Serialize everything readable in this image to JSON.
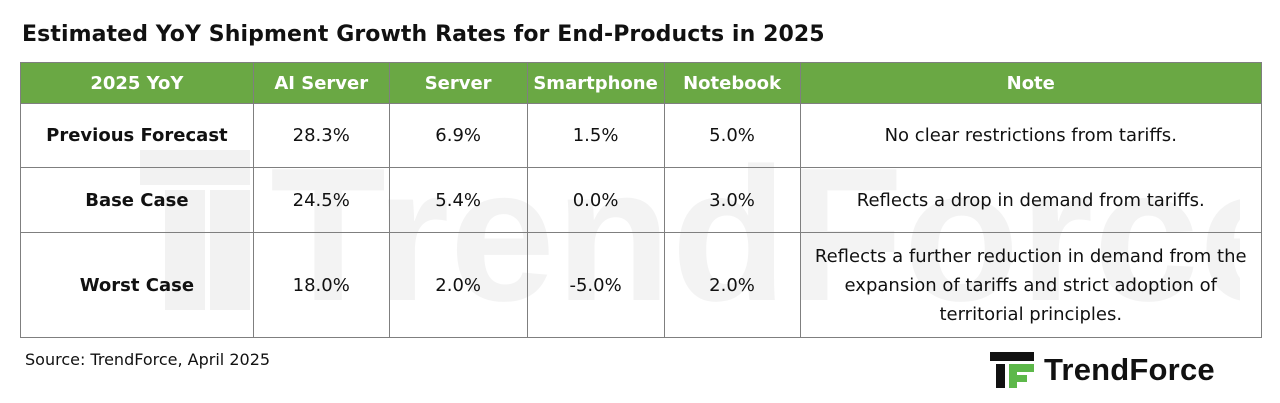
{
  "title": "Estimated YoY Shipment Growth Rates for End-Products  in 2025",
  "colors": {
    "header_bg": "#6aa844",
    "header_text": "#ffffff",
    "border": "#7f7f7f",
    "brand_green": "#5db84a"
  },
  "table": {
    "headers": [
      "2025 YoY",
      "AI Server",
      "Server",
      "Smartphone",
      "Notebook",
      "Note"
    ],
    "rows": [
      {
        "label": "Previous Forecast",
        "ai_server": "28.3%",
        "server": "6.9%",
        "smartphone": "1.5%",
        "notebook": "5.0%",
        "note": "No clear  restrictions from tariffs."
      },
      {
        "label": "Base Case",
        "ai_server": "24.5%",
        "server": "5.4%",
        "smartphone": "0.0%",
        "notebook": "3.0%",
        "note": "Reflects  a drop in demand  from tariffs."
      },
      {
        "label": "Worst Case",
        "ai_server": "18.0%",
        "server": "2.0%",
        "smartphone": "-5.0%",
        "notebook": "2.0%",
        "note_lines": [
          "Reflects a further reduction in demand from the",
          "expansion  of tariffs and strict adoption of",
          "territorial principles."
        ]
      }
    ]
  },
  "source": "Source: TrendForce, April 2025",
  "brand": {
    "name": "TrendForce",
    "icon": "trendforce-logo-icon"
  },
  "watermark": {
    "text": "TrendForce"
  }
}
